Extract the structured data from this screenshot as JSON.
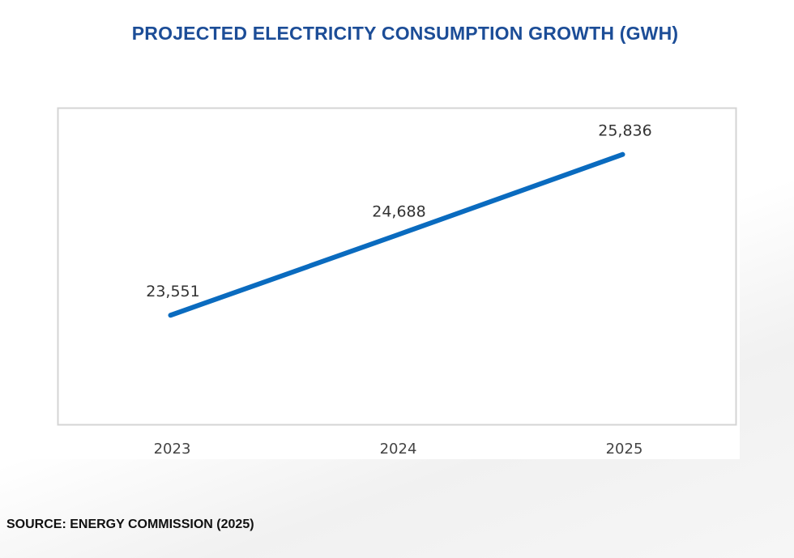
{
  "chart_data": {
    "type": "line",
    "title": "PROJECTED ELECTRICITY CONSUMPTION GROWTH (GWH)",
    "categories": [
      "2023",
      "2024",
      "2025"
    ],
    "values": [
      23551,
      24688,
      25836
    ],
    "data_labels": [
      "23,551",
      "24,688",
      "25,836"
    ],
    "xlabel": "",
    "ylabel": "",
    "ylim": [
      22000,
      26500
    ],
    "grid": false,
    "legend": "none",
    "line_color": "#0a6bbf"
  },
  "source": "SOURCE: ENERGY COMMISSION (2025)"
}
